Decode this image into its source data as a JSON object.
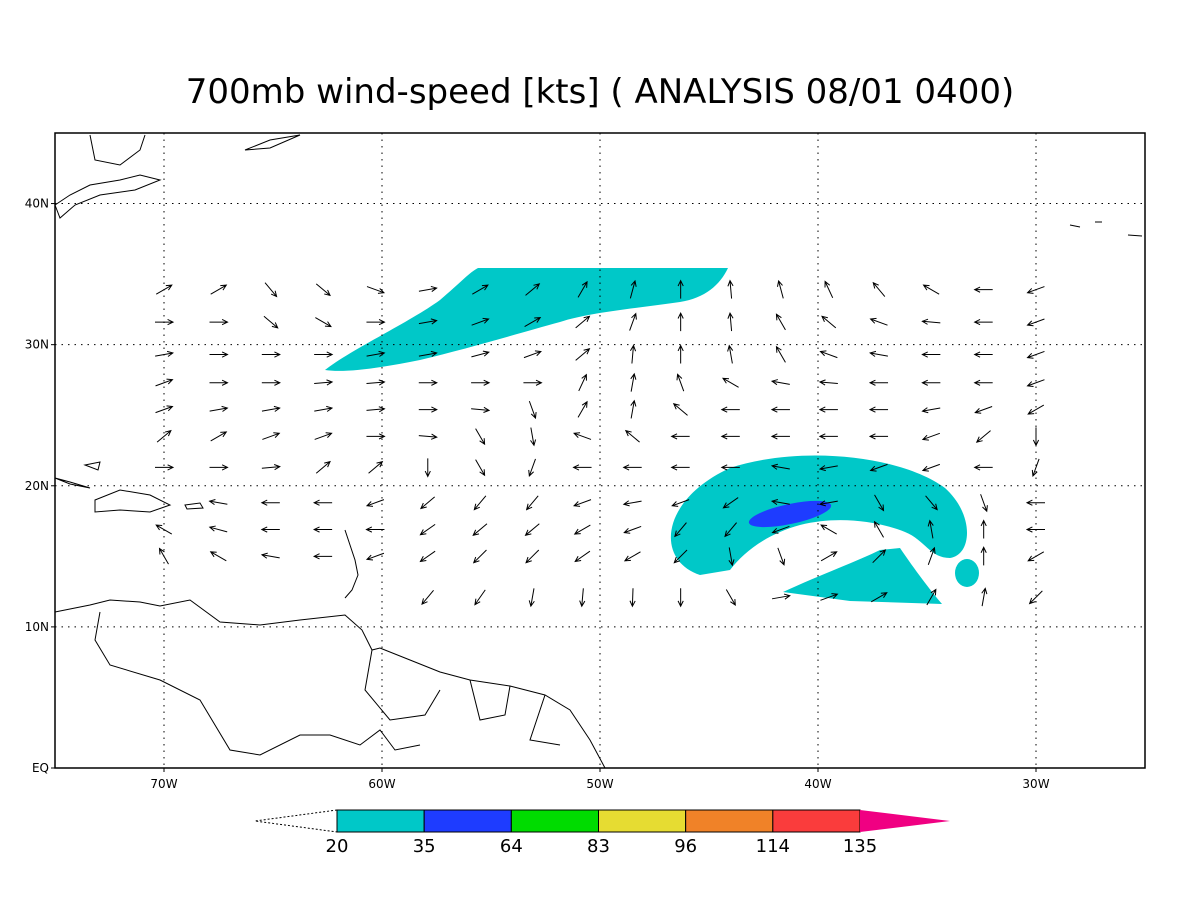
{
  "title": "700mb wind-speed [kts] ( ANALYSIS 08/01 0400)",
  "map": {
    "lon_range": [
      -75,
      -25
    ],
    "lat_range": [
      0,
      45
    ],
    "lon_ticks": [
      {
        "value": -70,
        "label": "70W"
      },
      {
        "value": -60,
        "label": "60W"
      },
      {
        "value": -50,
        "label": "50W"
      },
      {
        "value": -40,
        "label": "40W"
      },
      {
        "value": -30,
        "label": "30W"
      }
    ],
    "lat_ticks": [
      {
        "value": 0,
        "label": "EQ"
      },
      {
        "value": 10,
        "label": "10N"
      },
      {
        "value": 20,
        "label": "20N"
      },
      {
        "value": 30,
        "label": "30N"
      },
      {
        "value": 40,
        "label": "40N"
      }
    ]
  },
  "wind": {
    "lons": [
      -70,
      -67.5,
      -65.1,
      -62.7,
      -60.3,
      -57.9,
      -55.5,
      -53.1,
      -50.8,
      -48.5,
      -46.3,
      -44,
      -41.7,
      -39.5,
      -37.2,
      -34.8,
      -32.4,
      -30
    ],
    "lats": [
      33.9,
      31.6,
      29.3,
      27.3,
      25.4,
      23.5,
      21.3,
      18.8,
      16.9,
      15,
      12.1
    ],
    "angles": [
      [
        30,
        30,
        -50,
        -40,
        -20,
        10,
        30,
        40,
        60,
        75,
        90,
        95,
        105,
        115,
        130,
        150,
        180,
        200
      ],
      [
        0,
        0,
        -40,
        -30,
        0,
        10,
        20,
        30,
        40,
        70,
        90,
        95,
        120,
        140,
        160,
        175,
        180,
        200
      ],
      [
        10,
        0,
        0,
        0,
        10,
        10,
        15,
        20,
        40,
        85,
        90,
        100,
        120,
        160,
        170,
        180,
        180,
        200
      ],
      [
        20,
        0,
        0,
        5,
        5,
        0,
        0,
        0,
        65,
        80,
        110,
        150,
        170,
        175,
        180,
        180,
        180,
        200
      ],
      [
        20,
        10,
        10,
        10,
        5,
        0,
        -5,
        -70,
        60,
        80,
        140,
        180,
        180,
        180,
        180,
        190,
        200,
        210
      ],
      [
        40,
        30,
        20,
        20,
        0,
        -5,
        -60,
        -80,
        160,
        140,
        180,
        180,
        180,
        180,
        180,
        200,
        220,
        270
      ],
      [
        0,
        0,
        5,
        40,
        40,
        -90,
        -60,
        -110,
        180,
        180,
        180,
        180,
        170,
        190,
        200,
        200,
        180,
        250
      ],
      [
        null,
        170,
        180,
        180,
        200,
        220,
        230,
        230,
        200,
        190,
        200,
        215,
        170,
        190,
        -60,
        -50,
        -70,
        180
      ],
      [
        150,
        165,
        180,
        180,
        180,
        215,
        220,
        220,
        210,
        200,
        230,
        230,
        200,
        150,
        120,
        100,
        90,
        180
      ],
      [
        120,
        150,
        170,
        180,
        200,
        215,
        225,
        225,
        215,
        210,
        225,
        -80,
        -70,
        30,
        45,
        70,
        90,
        210
      ],
      [
        null,
        null,
        null,
        null,
        null,
        230,
        235,
        260,
        265,
        268,
        270,
        -60,
        10,
        20,
        30,
        60,
        80,
        225
      ]
    ]
  },
  "colorbar": {
    "levels": [
      20,
      35,
      64,
      83,
      96,
      114,
      135
    ],
    "colors": [
      "#00c8c8",
      "#1e3cff",
      "#00dc00",
      "#e6dc32",
      "#f08228",
      "#fa3c3c",
      "#f00082"
    ]
  }
}
